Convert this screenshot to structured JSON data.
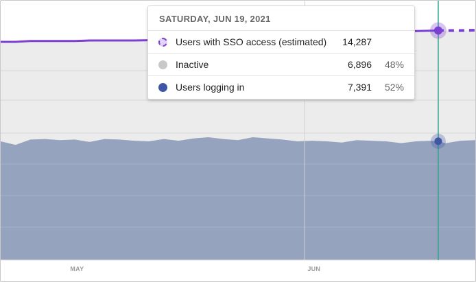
{
  "chart_data": {
    "type": "area",
    "x_ticks": [
      "MAY",
      "JUN"
    ],
    "hover_date": "2021-06-19",
    "x": [
      "2021-04-21",
      "2021-04-23",
      "2021-04-25",
      "2021-04-27",
      "2021-04-29",
      "2021-05-01",
      "2021-05-03",
      "2021-05-05",
      "2021-05-07",
      "2021-05-09",
      "2021-05-11",
      "2021-05-13",
      "2021-05-15",
      "2021-05-17",
      "2021-05-19",
      "2021-05-21",
      "2021-05-23",
      "2021-05-25",
      "2021-05-27",
      "2021-05-29",
      "2021-05-31",
      "2021-06-02",
      "2021-06-04",
      "2021-06-06",
      "2021-06-08",
      "2021-06-10",
      "2021-06-12",
      "2021-06-14",
      "2021-06-16",
      "2021-06-18",
      "2021-06-19",
      "2021-06-20",
      "2021-06-22",
      "2021-06-24"
    ],
    "series": [
      {
        "name": "Users with SSO access (estimated)",
        "type": "line",
        "color": "#7b3fd1",
        "values": [
          13880,
          13880,
          13910,
          13910,
          13910,
          13910,
          13930,
          13930,
          13930,
          13930,
          13940,
          13960,
          14000,
          14020,
          14040,
          14060,
          14080,
          14100,
          14120,
          14140,
          14160,
          14180,
          14200,
          14210,
          14230,
          14240,
          14250,
          14260,
          14270,
          14280,
          14287,
          14287,
          14287,
          14300
        ],
        "estimated_from": "2021-06-19"
      },
      {
        "name": "Users logging in",
        "type": "area",
        "color": "#4a5ea8",
        "values": [
          7390,
          7330,
          7420,
          7430,
          7410,
          7420,
          7380,
          7430,
          7420,
          7400,
          7390,
          7430,
          7400,
          7440,
          7460,
          7430,
          7410,
          7460,
          7440,
          7420,
          7390,
          7400,
          7390,
          7370,
          7410,
          7400,
          7390,
          7360,
          7390,
          7400,
          7391,
          7360,
          7400,
          7410
        ]
      },
      {
        "name": "Inactive",
        "color": "#c4c4c4"
      }
    ],
    "grid": true,
    "legend": "tooltip"
  },
  "tooltip": {
    "date": "SATURDAY, JUN 19, 2021",
    "rows": [
      {
        "label": "Users with SSO access (estimated)",
        "value": "14,287",
        "pct": "",
        "color": "#7b3fd1"
      },
      {
        "label": "Inactive",
        "value": "6,896",
        "pct": "48%",
        "color": "#c8c8c8"
      },
      {
        "label": "Users logging in",
        "value": "7,391",
        "pct": "52%",
        "color": "#3f56a3"
      }
    ]
  },
  "colors": {
    "sso_line": "#7b3fd1",
    "inactive_band": "#ececec",
    "logged_in_area": "#96a3bf",
    "hover_line": "#2ea58a"
  }
}
